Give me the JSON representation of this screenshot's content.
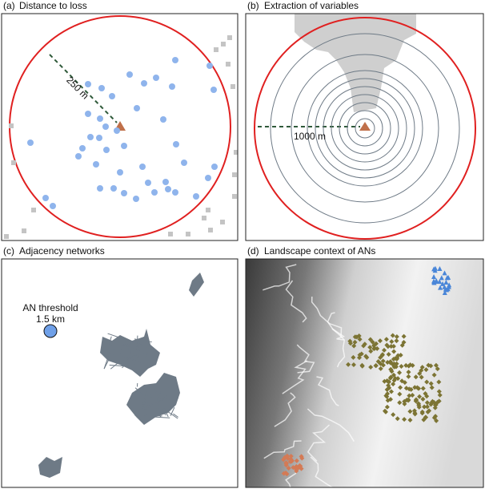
{
  "panels": [
    {
      "tag": "(a)",
      "title": "Distance to loss",
      "annotation": "250 m"
    },
    {
      "tag": "(b)",
      "title": "Extraction of variables",
      "annotation": "1000 m"
    },
    {
      "tag": "(c)",
      "title": "Adjacency networks",
      "annotation": "AN threshold",
      "annotation_value": "1.5 km"
    },
    {
      "tag": "(d)",
      "title": "Landscape context of ANs"
    }
  ]
}
